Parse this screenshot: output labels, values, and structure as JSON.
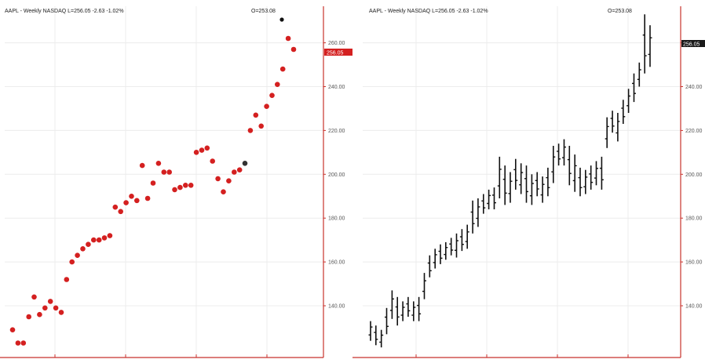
{
  "colors": {
    "dot": "#d42020",
    "last_dot": "#333333",
    "axis": "#c8322c",
    "bar": "#111111",
    "grid": "#ececec",
    "last_label_left_bg": "#d42020",
    "last_label_right_bg": "#1a1a1a"
  },
  "panels": [
    {
      "header": "AAPL - Weekly NASDAQ L=256.05 -2.63 -1.02%",
      "open_label": "O=253.08",
      "last_label": "256.05",
      "marker_icon": "black-dot-icon"
    },
    {
      "header": "AAPL - Weekly NASDAQ L=256.05 -2.63 -1.02%",
      "open_label": "O=253.08",
      "last_label": "256.05"
    }
  ],
  "chart_data": [
    {
      "type": "scatter",
      "title": "AAPL - Weekly NASDAQ L=256.05 -2.63 -1.02%",
      "ylim": [
        121,
        272
      ],
      "yticks": [
        "140.00",
        "160.00",
        "180.00",
        "200.00",
        "220.00",
        "240.00",
        "260.00"
      ],
      "grid": true,
      "series": [
        {
          "values": [
            129,
            123,
            123,
            135,
            144,
            136,
            139,
            142,
            139,
            137,
            152,
            160,
            163,
            166,
            168,
            170,
            170,
            171,
            172,
            185,
            183,
            187,
            190,
            188,
            204,
            189,
            196,
            205,
            201,
            201,
            193,
            194,
            195,
            195,
            210,
            211,
            212,
            206,
            198,
            192,
            197,
            201,
            202,
            205,
            220,
            227,
            222,
            231,
            236,
            241,
            248,
            262,
            257
          ]
        }
      ]
    },
    {
      "type": "bar",
      "title": "AAPL - Weekly NASDAQ L=256.05 -2.63 -1.02%",
      "ylim": [
        121,
        272
      ],
      "yticks": [
        "140.00",
        "160.00",
        "180.00",
        "200.00",
        "220.00",
        "240.00",
        "260.00"
      ],
      "grid": true,
      "series": [
        {
          "highs": [
            133,
            131,
            129,
            139,
            147,
            144,
            142,
            144,
            142,
            144,
            155,
            163,
            166,
            168,
            169,
            171,
            173,
            175,
            177,
            188,
            189,
            191,
            193,
            194,
            208,
            204,
            201,
            207,
            205,
            204,
            200,
            201,
            199,
            203,
            213,
            214,
            216,
            213,
            209,
            203,
            202,
            204,
            206,
            208,
            226,
            229,
            228,
            234,
            239,
            246,
            251,
            273,
            268
          ],
          "lows": [
            124,
            122,
            121,
            127,
            134,
            131,
            133,
            135,
            133,
            133,
            143,
            153,
            157,
            159,
            161,
            163,
            162,
            165,
            166,
            173,
            176,
            182,
            184,
            184,
            189,
            186,
            187,
            193,
            191,
            187,
            186,
            190,
            187,
            190,
            196,
            204,
            204,
            195,
            192,
            190,
            191,
            193,
            195,
            193,
            212,
            219,
            215,
            223,
            228,
            233,
            240,
            246,
            249
          ]
        }
      ]
    }
  ]
}
